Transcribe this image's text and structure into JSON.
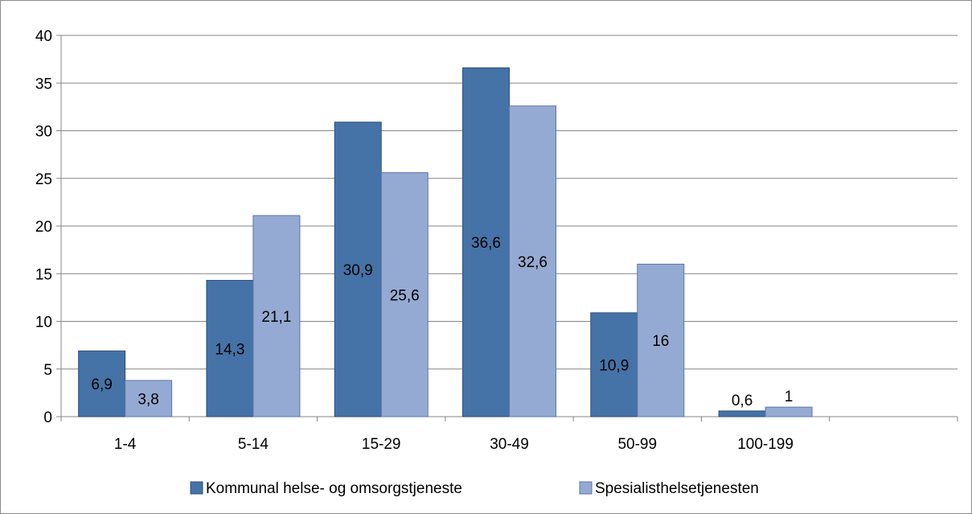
{
  "colors": {
    "series_1": "#4572a7",
    "series_1_stroke": "#2f4f7a",
    "series_2": "#95aad2",
    "series_2_stroke": "#5d76a8",
    "gridline": "#868686",
    "axis": "#868686"
  },
  "chart_data": {
    "type": "bar",
    "categories": [
      "1-4",
      "5-14",
      "15-29",
      "30-49",
      "50-99",
      "100-199",
      ""
    ],
    "series": [
      {
        "name": "Kommunal helse- og omsorgstjeneste",
        "values": [
          6.9,
          14.3,
          30.9,
          36.6,
          10.9,
          0.6,
          null
        ],
        "labels": [
          "6,9",
          "14,3",
          "30,9",
          "36,6",
          "10,9",
          "0,6",
          ""
        ]
      },
      {
        "name": "Spesialisthelsetjenesten",
        "values": [
          3.8,
          21.1,
          25.6,
          32.6,
          16,
          1,
          null
        ],
        "labels": [
          "3,8",
          "21,1",
          "25,6",
          "32,6",
          "16",
          "1",
          ""
        ]
      }
    ],
    "title": "",
    "xlabel": "",
    "ylabel": "",
    "ylim": [
      0,
      40
    ],
    "yticks": [
      0,
      5,
      10,
      15,
      20,
      25,
      30,
      35,
      40
    ],
    "grid": true,
    "legend_position": "bottom"
  }
}
